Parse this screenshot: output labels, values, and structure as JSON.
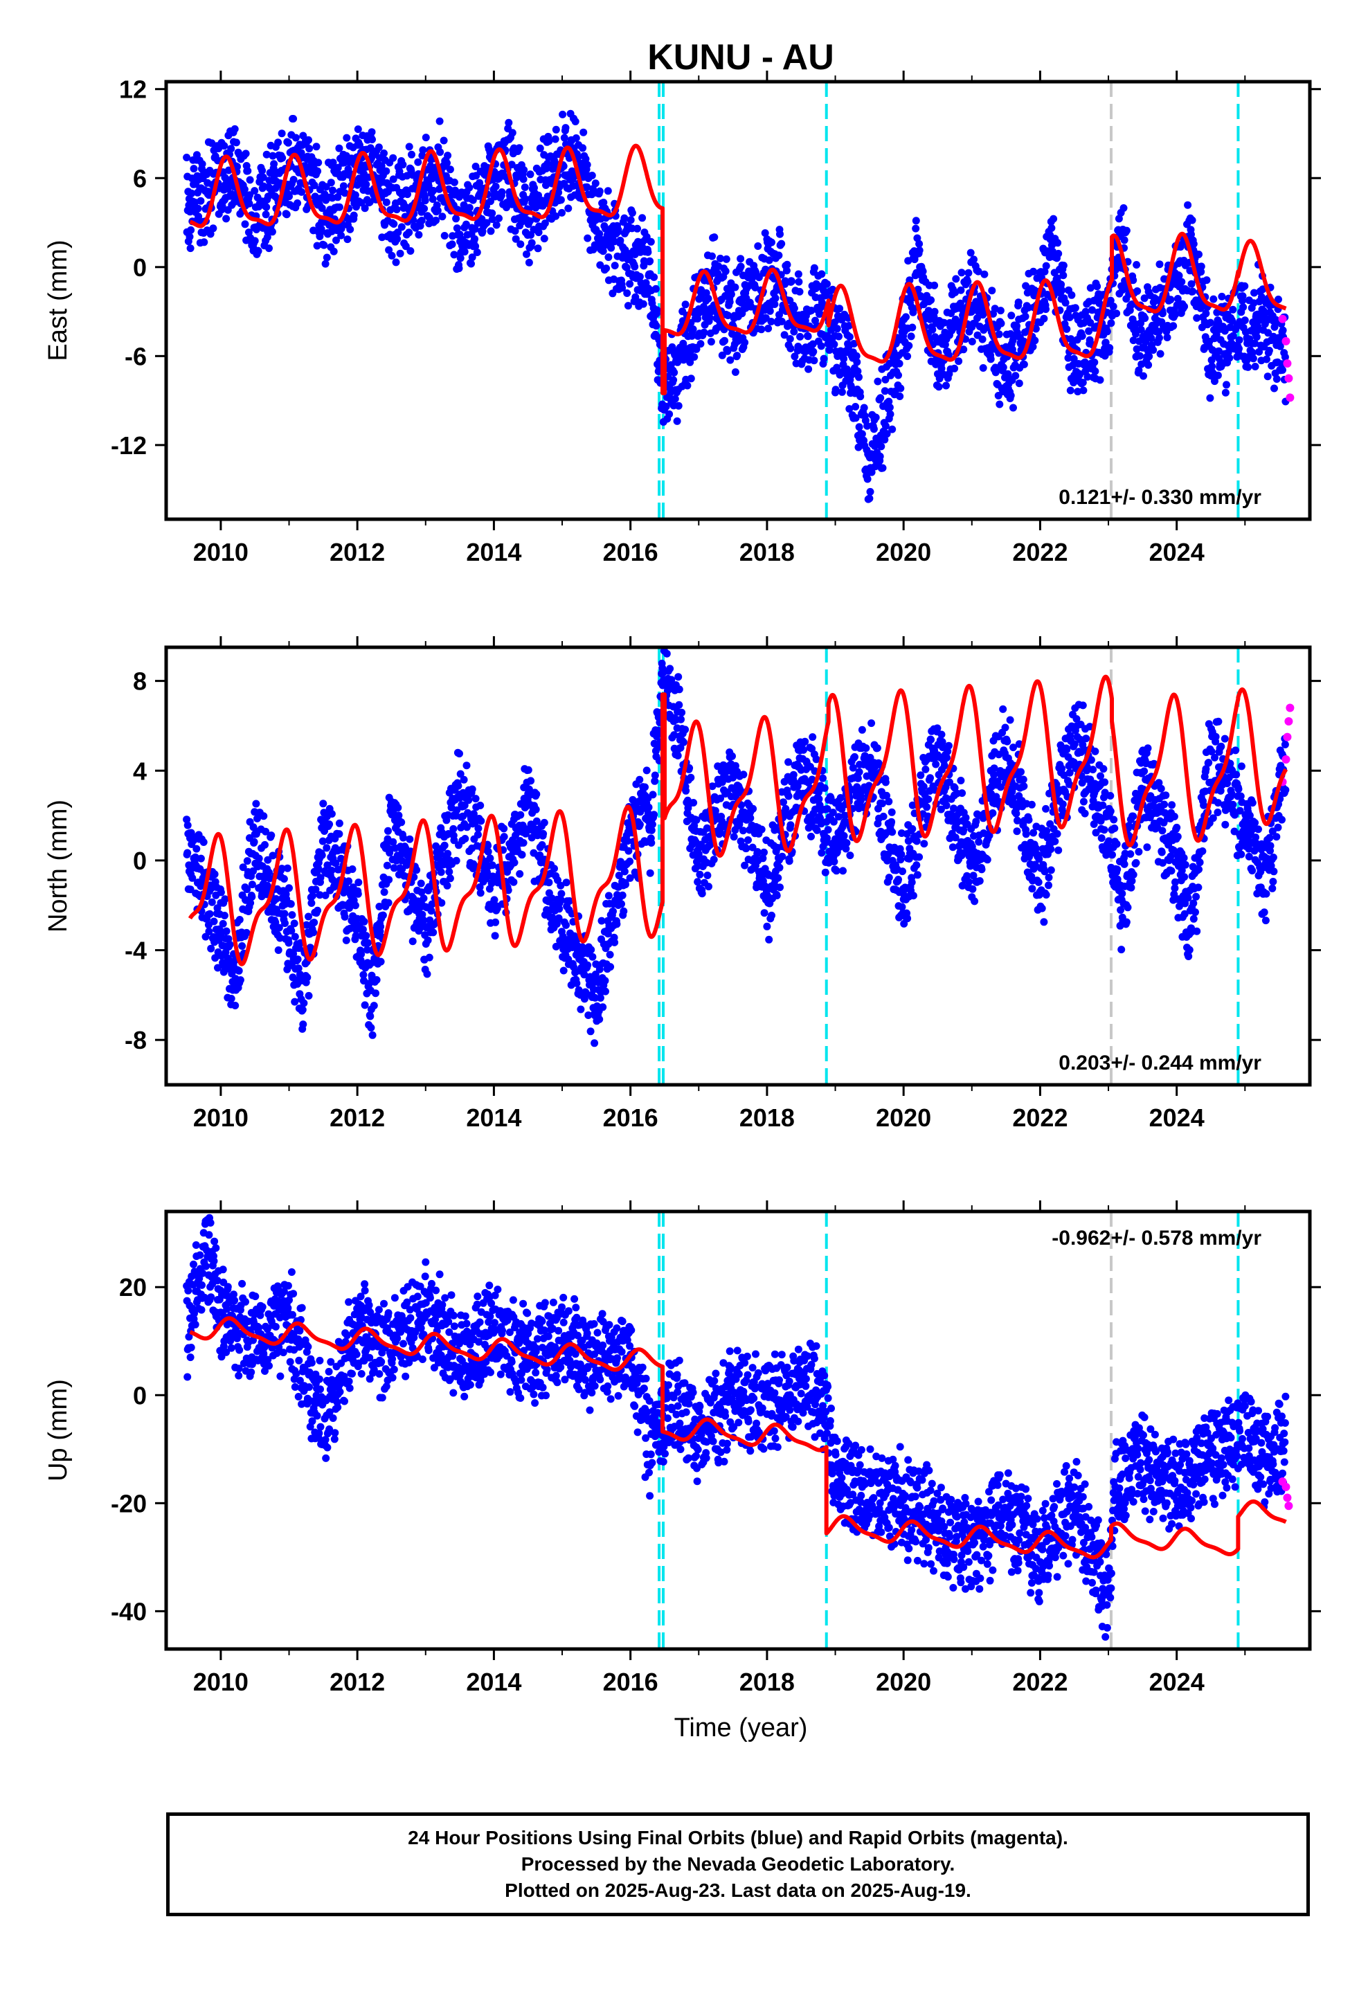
{
  "title": "KUNU - AU",
  "xlabel": "Time (year)",
  "caption": {
    "line1": "24 Hour Positions Using Final Orbits (blue) and Rapid Orbits (magenta).",
    "line2": "Processed by the Nevada Geodetic Laboratory.",
    "line3": "Plotted on 2025-Aug-23. Last data on 2025-Aug-19."
  },
  "colors": {
    "final_orbits": "#0000ff",
    "rapid_orbits": "#ff00ff",
    "model_fit": "#ff0000",
    "equipment_change": "#00e5ee",
    "earthquake": "#c8c8c8"
  },
  "chart_data": [
    {
      "type": "scatter",
      "component": "east",
      "ylabel": "East (mm)",
      "rate_text": "0.121+/- 0.330 mm/yr",
      "rate_position": "bottom-right",
      "xlim": [
        2009.2,
        2025.95
      ],
      "ylim": [
        -17,
        12.5
      ],
      "xticks": [
        2010,
        2012,
        2014,
        2016,
        2018,
        2020,
        2022,
        2024
      ],
      "yticks": [
        12,
        6,
        0,
        -6,
        -12
      ],
      "ytick_labels": [
        "12",
        "6",
        "0",
        "-6",
        "-12"
      ],
      "series": [
        {
          "x": [
            2009.5,
            2010.0,
            2010.2,
            2010.5,
            2011.0,
            2011.2,
            2011.5,
            2012.0,
            2012.2,
            2012.5,
            2013.0,
            2013.2,
            2013.5,
            2014.0,
            2014.2,
            2014.5,
            2015.0,
            2015.2,
            2015.5,
            2016.0,
            2016.2,
            2016.35,
            2016.45,
            2016.7,
            2017.0,
            2017.2,
            2017.5,
            2018.0,
            2018.2,
            2018.5,
            2018.85,
            2019.0,
            2019.2,
            2019.5,
            2020.0,
            2020.2,
            2020.5,
            2021.0,
            2021.2,
            2021.5,
            2022.0,
            2022.2,
            2022.5,
            2023.0,
            2023.1,
            2023.2,
            2023.5,
            2024.0,
            2024.2,
            2024.5,
            2024.95,
            2025.2,
            2025.6
          ],
          "y": [
            4.5,
            6.0,
            7.0,
            3.0,
            6.5,
            7.5,
            3.5,
            6.0,
            7.0,
            3.5,
            5.5,
            6.5,
            2.0,
            6.0,
            7.0,
            3.0,
            7.0,
            8.0,
            3.0,
            1.0,
            0.0,
            -2.0,
            -8.0,
            -7.0,
            -3.0,
            -1.5,
            -4.0,
            -0.5,
            -1.0,
            -4.5,
            -3.0,
            -5.0,
            -6.0,
            -13.0,
            -5.0,
            0.5,
            -6.0,
            -2.0,
            -3.5,
            -7.0,
            -2.0,
            1.0,
            -6.0,
            -3.5,
            -0.5,
            1.5,
            -5.0,
            -1.0,
            1.0,
            -5.5,
            -4.0,
            -3.0,
            -6.0
          ]
        },
        {
          "x": [
            2025.55,
            2025.6,
            2025.62,
            2025.64,
            2025.66
          ],
          "y": [
            -3.5,
            -5.0,
            -6.5,
            -7.5,
            -8.8
          ]
        }
      ],
      "model_segments": [
        {
          "t0": 2009.55,
          "t1": 2016.47,
          "offset": 4.5,
          "slope": 0.121,
          "annual": 2.2,
          "semiannual": 0.7,
          "phase": 1.0
        },
        {
          "t0": 2016.47,
          "t1": 2016.5,
          "offset": -8.5,
          "slope": 0.0,
          "annual": 0.0,
          "semiannual": 0.0,
          "phase": 0.0
        },
        {
          "t0": 2016.5,
          "t1": 2018.9,
          "offset": -3.8,
          "slope": 0.121,
          "annual": 2.0,
          "semiannual": 0.6,
          "phase": 1.0
        },
        {
          "t0": 2018.9,
          "t1": 2023.05,
          "offset": -5.6,
          "slope": 0.121,
          "annual": 2.5,
          "semiannual": 0.7,
          "phase": 1.0
        },
        {
          "t0": 2023.05,
          "t1": 2024.9,
          "offset": -2.7,
          "slope": 0.121,
          "annual": 2.5,
          "semiannual": 0.7,
          "phase": 1.0
        },
        {
          "t0": 2024.9,
          "t1": 2025.6,
          "offset": -3.0,
          "slope": 0.121,
          "annual": 2.3,
          "semiannual": 0.6,
          "phase": 1.0
        }
      ],
      "equipment_changes": [
        2016.42,
        2016.48,
        2018.87,
        2024.9
      ],
      "earthquakes": [
        2023.04
      ]
    },
    {
      "type": "scatter",
      "component": "north",
      "ylabel": "North (mm)",
      "rate_text": "0.203+/- 0.244 mm/yr",
      "rate_position": "bottom-right",
      "xlim": [
        2009.2,
        2025.95
      ],
      "ylim": [
        -10,
        9.5
      ],
      "xticks": [
        2010,
        2012,
        2014,
        2016,
        2018,
        2020,
        2022,
        2024
      ],
      "yticks": [
        8,
        4,
        0,
        -4,
        -8
      ],
      "ytick_labels": [
        "8",
        "4",
        "0",
        "-4",
        "-8"
      ],
      "series": [
        {
          "x": [
            2009.5,
            2010.0,
            2010.2,
            2010.5,
            2011.0,
            2011.2,
            2011.5,
            2012.0,
            2012.2,
            2012.5,
            2013.0,
            2013.5,
            2014.0,
            2014.5,
            2015.0,
            2015.5,
            2016.0,
            2016.3,
            2016.5,
            2016.7,
            2017.0,
            2017.5,
            2018.0,
            2018.5,
            2019.0,
            2019.5,
            2020.0,
            2020.5,
            2021.0,
            2021.5,
            2022.0,
            2022.5,
            2023.0,
            2023.2,
            2023.5,
            2024.0,
            2024.2,
            2024.5,
            2025.0,
            2025.3,
            2025.6
          ],
          "y": [
            0.5,
            -3.0,
            -5.5,
            1.0,
            -3.0,
            -6.0,
            1.0,
            -2.5,
            -6.0,
            1.5,
            -3.0,
            3.0,
            -1.5,
            2.5,
            -3.0,
            -6.0,
            1.0,
            2.0,
            8.5,
            6.0,
            0.0,
            3.5,
            -1.5,
            4.0,
            1.0,
            4.5,
            -1.5,
            5.0,
            -0.5,
            5.0,
            -1.0,
            5.5,
            1.5,
            -2.0,
            3.5,
            0.0,
            -3.0,
            4.5,
            2.0,
            -1.0,
            5.0
          ]
        },
        {
          "x": [
            2025.55,
            2025.6,
            2025.62,
            2025.64,
            2025.66
          ],
          "y": [
            3.5,
            4.5,
            5.5,
            6.2,
            6.8
          ]
        }
      ],
      "model_segments": [
        {
          "t0": 2009.55,
          "t1": 2016.47,
          "offset": -2.0,
          "slope": 0.203,
          "annual": 2.4,
          "semiannual": 1.0,
          "phase": 2.2
        },
        {
          "t0": 2016.47,
          "t1": 2016.5,
          "offset": 7.4,
          "slope": 0.0,
          "annual": 0.0,
          "semiannual": 0.0,
          "phase": 0.0
        },
        {
          "t0": 2016.5,
          "t1": 2018.9,
          "offset": 1.5,
          "slope": 0.203,
          "annual": 2.5,
          "semiannual": 1.0,
          "phase": 2.2
        },
        {
          "t0": 2018.9,
          "t1": 2023.05,
          "offset": 2.0,
          "slope": 0.203,
          "annual": 2.8,
          "semiannual": 1.0,
          "phase": 2.2
        },
        {
          "t0": 2023.05,
          "t1": 2024.9,
          "offset": 1.0,
          "slope": 0.203,
          "annual": 2.8,
          "semiannual": 1.0,
          "phase": 2.2
        },
        {
          "t0": 2024.9,
          "t1": 2025.6,
          "offset": 1.3,
          "slope": 0.203,
          "annual": 2.6,
          "semiannual": 0.9,
          "phase": 2.2
        }
      ],
      "equipment_changes": [
        2016.42,
        2016.48,
        2018.87,
        2024.9
      ],
      "earthquakes": [
        2023.04
      ]
    },
    {
      "type": "scatter",
      "component": "up",
      "ylabel": "Up (mm)",
      "rate_text": "-0.962+/- 0.578 mm/yr",
      "rate_position": "top-right",
      "xlim": [
        2009.2,
        2025.95
      ],
      "ylim": [
        -47,
        34
      ],
      "xticks": [
        2010,
        2012,
        2014,
        2016,
        2018,
        2020,
        2022,
        2024
      ],
      "yticks": [
        20,
        0,
        -20,
        -40
      ],
      "ytick_labels": [
        "20",
        "0",
        "-20",
        "-40"
      ],
      "series": [
        {
          "x": [
            2009.5,
            2009.8,
            2010.0,
            2010.5,
            2011.0,
            2011.5,
            2012.0,
            2012.5,
            2013.0,
            2013.5,
            2014.0,
            2014.5,
            2015.0,
            2015.5,
            2016.0,
            2016.3,
            2016.6,
            2017.0,
            2017.5,
            2018.0,
            2018.5,
            2018.8,
            2019.0,
            2019.5,
            2020.0,
            2020.5,
            2021.0,
            2021.5,
            2022.0,
            2022.5,
            2023.0,
            2023.1,
            2023.5,
            2024.0,
            2024.5,
            2025.0,
            2025.3,
            2025.6
          ],
          "y": [
            12.0,
            28.0,
            15.0,
            10.0,
            14.0,
            -5.0,
            12.0,
            8.0,
            16.0,
            6.0,
            12.0,
            7.0,
            10.0,
            5.0,
            8.0,
            -10.0,
            0.0,
            -8.0,
            0.0,
            -3.0,
            2.0,
            0.0,
            -15.0,
            -18.0,
            -20.0,
            -24.0,
            -28.0,
            -22.0,
            -30.0,
            -20.0,
            -38.0,
            -18.0,
            -12.0,
            -18.0,
            -10.0,
            -8.0,
            -12.0,
            -9.0
          ]
        },
        {
          "x": [
            2025.55,
            2025.6,
            2025.62,
            2025.64
          ],
          "y": [
            -16.0,
            -17.0,
            -19.0,
            -20.5
          ]
        }
      ],
      "model_segments": [
        {
          "t0": 2009.55,
          "t1": 2016.47,
          "offset": 12.5,
          "slope": -0.962,
          "annual": 1.8,
          "semiannual": 0.6,
          "phase": 0.5
        },
        {
          "t0": 2016.47,
          "t1": 2018.87,
          "offset": 0.5,
          "slope": -0.962,
          "annual": 1.8,
          "semiannual": 0.6,
          "phase": 0.5
        },
        {
          "t0": 2018.87,
          "t1": 2023.04,
          "offset": -15.5,
          "slope": -0.962,
          "annual": 1.8,
          "semiannual": 0.6,
          "phase": 0.5
        },
        {
          "t0": 2023.04,
          "t1": 2024.9,
          "offset": -13.0,
          "slope": -0.962,
          "annual": 1.8,
          "semiannual": 0.6,
          "phase": 0.5
        },
        {
          "t0": 2024.9,
          "t1": 2025.6,
          "offset": -7.0,
          "slope": -0.962,
          "annual": 1.8,
          "semiannual": 0.6,
          "phase": 0.5
        }
      ],
      "equipment_changes": [
        2016.42,
        2016.48,
        2018.87,
        2024.9
      ],
      "earthquakes": [
        2023.04
      ]
    }
  ]
}
